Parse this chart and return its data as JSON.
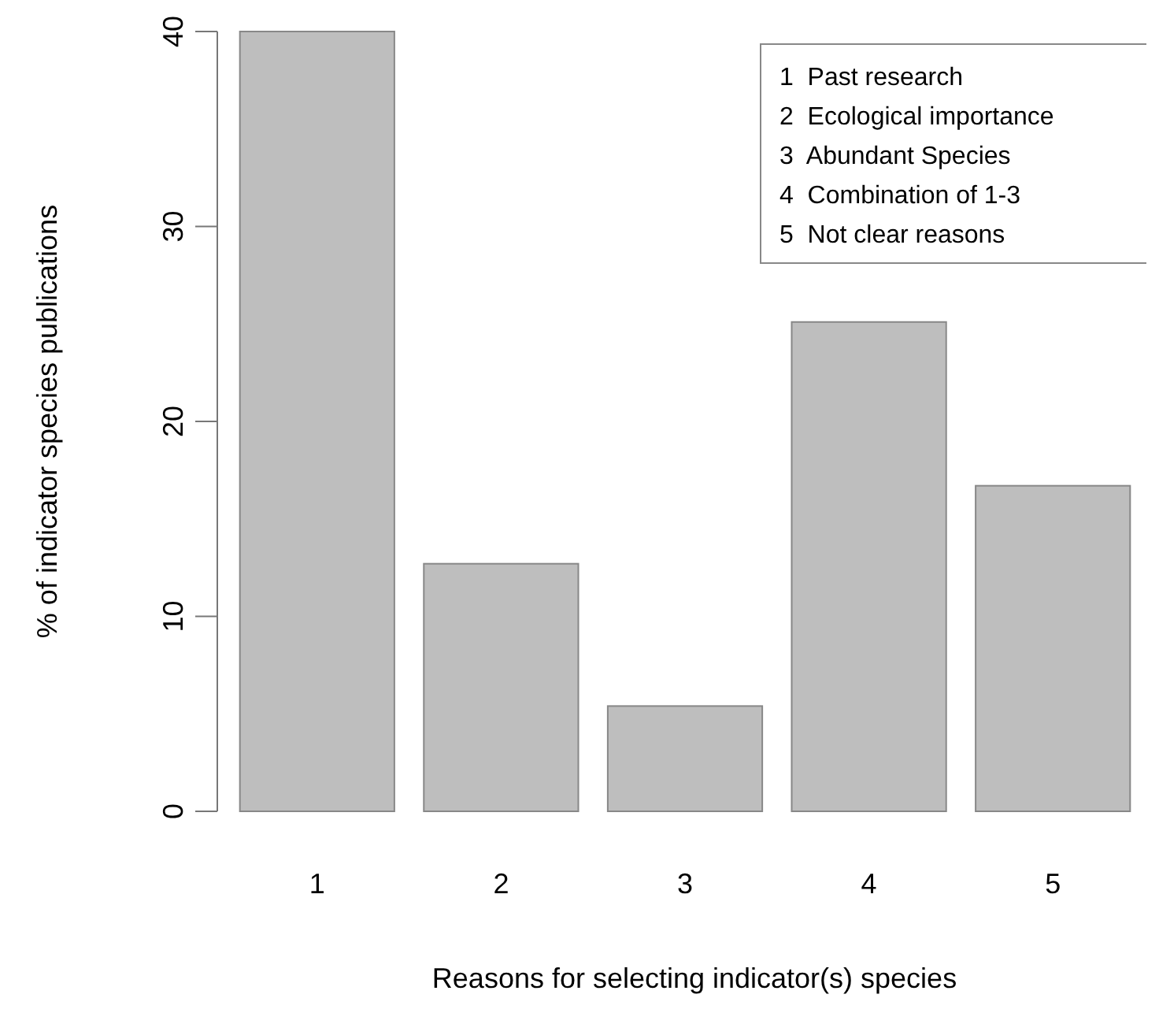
{
  "chart_data": {
    "type": "bar",
    "xlabel": "Reasons for selecting indicator(s) species",
    "ylabel": "% of indicator species publications",
    "categories": [
      "1",
      "2",
      "3",
      "4",
      "5"
    ],
    "values": [
      40,
      12.7,
      5.4,
      25.1,
      16.7
    ],
    "color": "#bebebe",
    "ylim": [
      0,
      40
    ],
    "yticks": [
      0,
      10,
      20,
      30,
      40
    ],
    "annotations": [
      "1  Past research",
      "2  Ecological importance",
      "3  Abundant Species",
      "4  Combination of 1-3",
      "5  Not clear reasons"
    ]
  }
}
